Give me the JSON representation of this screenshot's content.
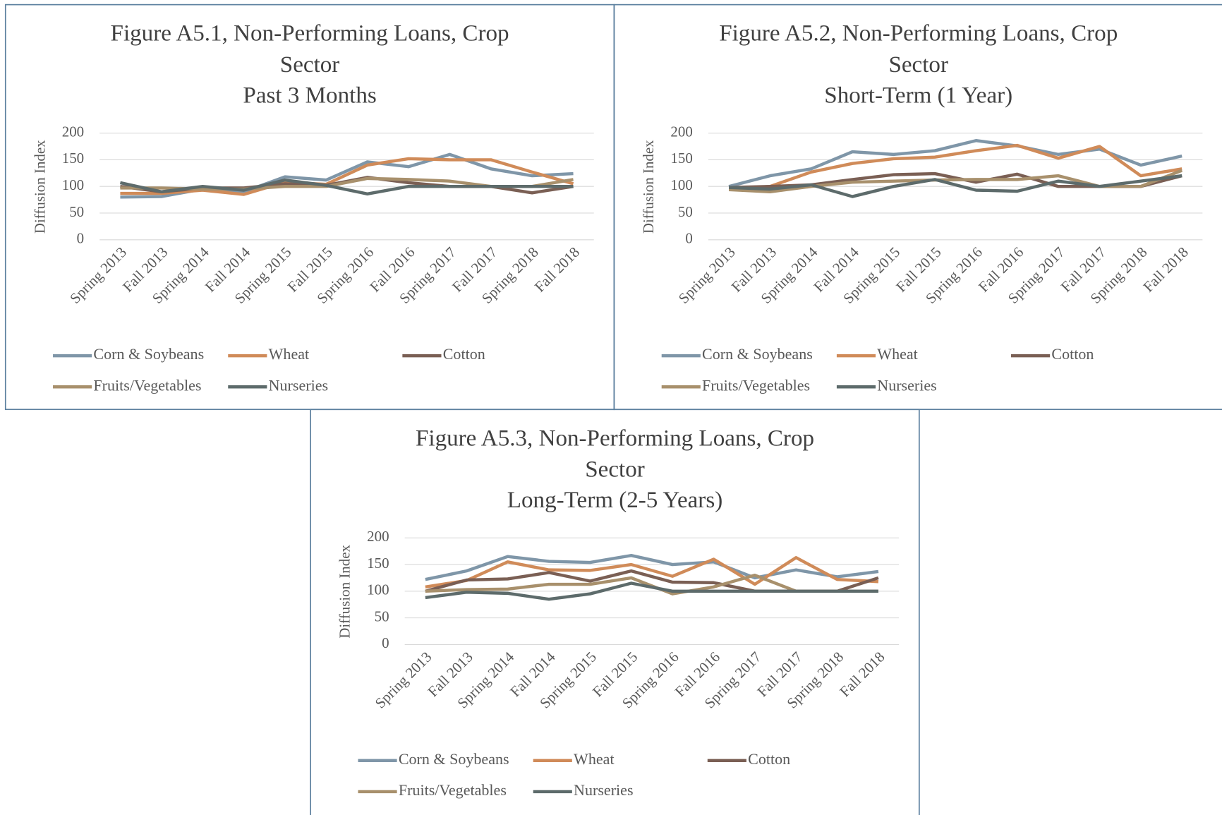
{
  "chart_data": [
    {
      "type": "line",
      "title": "Figure A5.1, Non-Performing Loans, Crop Sector",
      "subtitle": "Past 3 Months",
      "y_label": "Diffusion Index",
      "categories": [
        "Spring 2013",
        "Fall 2013",
        "Spring 2014",
        "Fall 2014",
        "Spring 2015",
        "Fall 2015",
        "Spring 2016",
        "Fall 2016",
        "Spring 2017",
        "Fall 2017",
        "Spring 2018",
        "Fall 2018"
      ],
      "ylim": [
        0,
        200
      ],
      "yticks": [
        0,
        50,
        100,
        150,
        200
      ],
      "grid": true,
      "series": [
        {
          "name": "Corn & Soybeans",
          "color": "#7f96a8",
          "values": [
            80,
            81,
            95,
            90,
            118,
            112,
            146,
            137,
            160,
            133,
            120,
            124
          ]
        },
        {
          "name": "Wheat",
          "color": "#d08b59",
          "values": [
            87,
            87,
            93,
            85,
            108,
            104,
            140,
            152,
            150,
            150,
            127,
            105
          ]
        },
        {
          "name": "Cotton",
          "color": "#7a5f54",
          "values": [
            100,
            90,
            97,
            97,
            105,
            102,
            117,
            107,
            100,
            100,
            88,
            100
          ]
        },
        {
          "name": "Fruits/Vegetables",
          "color": "#a8906c",
          "values": [
            97,
            97,
            95,
            95,
            100,
            100,
            115,
            113,
            110,
            100,
            100,
            113
          ]
        },
        {
          "name": "Nurseries",
          "color": "#5d6b6b",
          "values": [
            107,
            90,
            100,
            93,
            112,
            102,
            86,
            100,
            100,
            100,
            100,
            100
          ]
        }
      ]
    },
    {
      "type": "line",
      "title": "Figure A5.2, Non-Performing Loans, Crop Sector",
      "subtitle": "Short-Term (1 Year)",
      "y_label": "Diffusion Index",
      "categories": [
        "Spring 2013",
        "Fall 2013",
        "Spring 2014",
        "Fall 2014",
        "Spring 2015",
        "Fall 2015",
        "Spring 2016",
        "Fall 2016",
        "Spring 2017",
        "Fall 2017",
        "Spring 2018",
        "Fall 2018"
      ],
      "ylim": [
        0,
        200
      ],
      "yticks": [
        0,
        50,
        100,
        150,
        200
      ],
      "grid": true,
      "series": [
        {
          "name": "Corn & Soybeans",
          "color": "#7f96a8",
          "values": [
            100,
            120,
            133,
            165,
            160,
            167,
            186,
            176,
            160,
            170,
            140,
            157
          ]
        },
        {
          "name": "Wheat",
          "color": "#d08b59",
          "values": [
            95,
            100,
            127,
            143,
            152,
            155,
            167,
            177,
            153,
            175,
            120,
            133
          ]
        },
        {
          "name": "Cotton",
          "color": "#7a5f54",
          "values": [
            98,
            100,
            103,
            113,
            122,
            124,
            108,
            123,
            100,
            100,
            100,
            120
          ]
        },
        {
          "name": "Fruits/Vegetables",
          "color": "#a8906c",
          "values": [
            94,
            90,
            100,
            108,
            110,
            112,
            113,
            113,
            120,
            100,
            100,
            130
          ]
        },
        {
          "name": "Nurseries",
          "color": "#5d6b6b",
          "values": [
            98,
            95,
            103,
            81,
            100,
            113,
            93,
            91,
            110,
            100,
            110,
            120
          ]
        }
      ]
    },
    {
      "type": "line",
      "title": "Figure A5.3, Non-Performing Loans, Crop Sector",
      "subtitle": "Long-Term (2-5 Years)",
      "y_label": "Diffusion Index",
      "categories": [
        "Spring 2013",
        "Fall 2013",
        "Spring 2014",
        "Fall 2014",
        "Spring 2015",
        "Fall 2015",
        "Spring 2016",
        "Fall 2016",
        "Spring 2017",
        "Fall 2017",
        "Spring 2018",
        "Fall 2018"
      ],
      "ylim": [
        0,
        200
      ],
      "yticks": [
        0,
        50,
        100,
        150,
        200
      ],
      "grid": true,
      "series": [
        {
          "name": "Corn & Soybeans",
          "color": "#7f96a8",
          "values": [
            122,
            138,
            165,
            156,
            154,
            167,
            150,
            155,
            125,
            140,
            127,
            137
          ]
        },
        {
          "name": "Wheat",
          "color": "#d08b59",
          "values": [
            108,
            120,
            155,
            140,
            139,
            150,
            128,
            160,
            113,
            163,
            122,
            118
          ]
        },
        {
          "name": "Cotton",
          "color": "#7a5f54",
          "values": [
            100,
            121,
            123,
            135,
            119,
            138,
            117,
            116,
            100,
            100,
            100,
            125
          ]
        },
        {
          "name": "Fruits/Vegetables",
          "color": "#a8906c",
          "values": [
            100,
            103,
            104,
            113,
            113,
            125,
            95,
            108,
            130,
            100,
            100,
            100
          ]
        },
        {
          "name": "Nurseries",
          "color": "#5d6b6b",
          "values": [
            88,
            98,
            96,
            85,
            95,
            115,
            100,
            100,
            100,
            100,
            100,
            100
          ]
        }
      ]
    }
  ]
}
